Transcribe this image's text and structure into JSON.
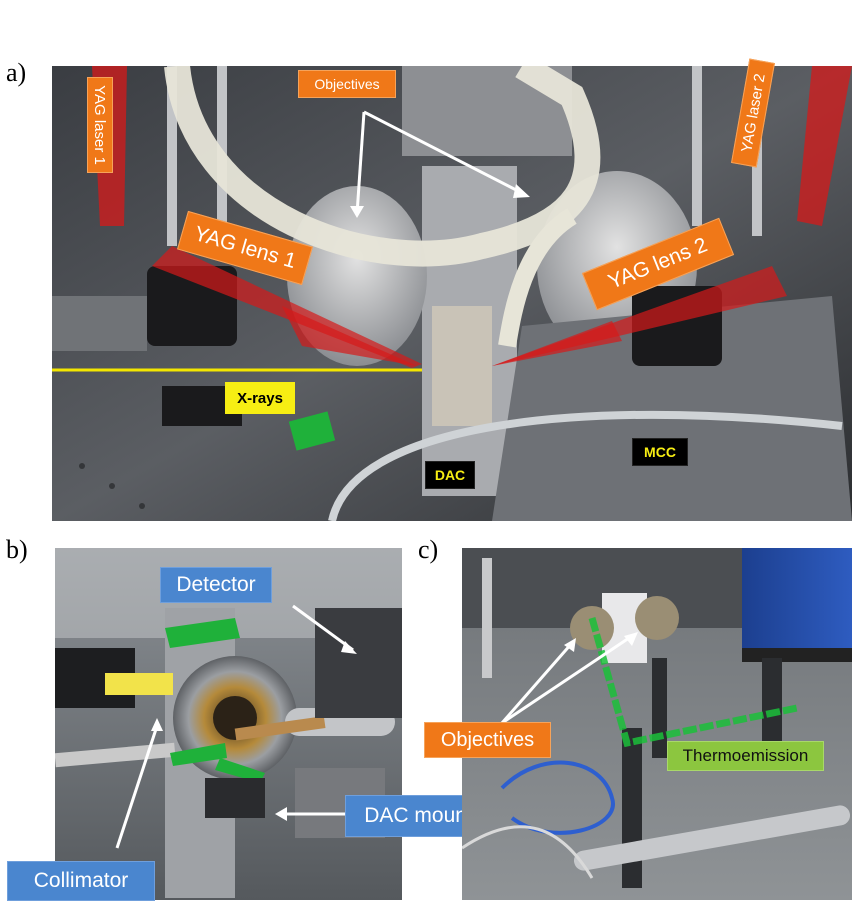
{
  "panels": {
    "a": {
      "letter": "a)",
      "labels": {
        "objectives": "Objectives",
        "yag_laser_1": "YAG laser 1",
        "yag_laser_2": "YAG laser 2",
        "yag_lens_1": "YAG lens 1",
        "yag_lens_2": "YAG lens 2",
        "xrays": "X-rays",
        "dac": "DAC",
        "mcc": "MCC"
      }
    },
    "b": {
      "letter": "b)",
      "labels": {
        "detector": "Detector",
        "dac_mount": "DAC mount",
        "collimator": "Collimator"
      }
    },
    "c": {
      "letter": "c)",
      "labels": {
        "objectives": "Objectives",
        "thermoemission": "Thermoemission"
      }
    }
  },
  "colors": {
    "orange_label": "#f07818",
    "yellow_label": "#f7ee13",
    "blue_label": "#4a86cf",
    "green_label": "#8cc63f",
    "laser_red": "#d51a1a",
    "xray_yellow": "#f3e600",
    "thermo_green": "#1bbf3a"
  }
}
